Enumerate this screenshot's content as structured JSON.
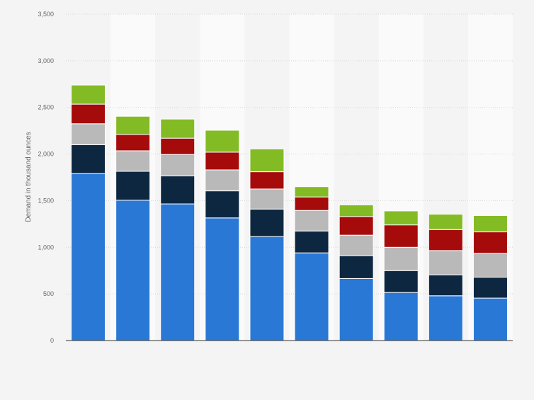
{
  "chart_data": {
    "type": "bar",
    "stacked": true,
    "ylabel": "Demand in thousand ounces",
    "ylim": [
      0,
      3500
    ],
    "yticks": [
      0,
      500,
      1000,
      1500,
      2000,
      2500,
      3000,
      3500
    ],
    "ytick_labels": [
      "0",
      "500",
      "1,000",
      "1,500",
      "2,000",
      "2,500",
      "3,000",
      "3,500"
    ],
    "grid": true,
    "bar_count": 10,
    "series": [
      {
        "color": "#2a78d6",
        "values": [
          1790,
          1505,
          1465,
          1315,
          1115,
          940,
          665,
          515,
          480,
          455
        ]
      },
      {
        "color": "#0e2741",
        "values": [
          310,
          310,
          300,
          290,
          295,
          235,
          245,
          235,
          225,
          225
        ]
      },
      {
        "color": "#b9b9b9",
        "values": [
          225,
          220,
          230,
          225,
          215,
          220,
          220,
          250,
          260,
          255
        ]
      },
      {
        "color": "#a50b0b",
        "values": [
          210,
          175,
          175,
          190,
          185,
          145,
          200,
          240,
          225,
          230
        ]
      },
      {
        "color": "#83bb25",
        "values": [
          205,
          195,
          205,
          235,
          245,
          110,
          125,
          150,
          165,
          175
        ]
      }
    ]
  }
}
